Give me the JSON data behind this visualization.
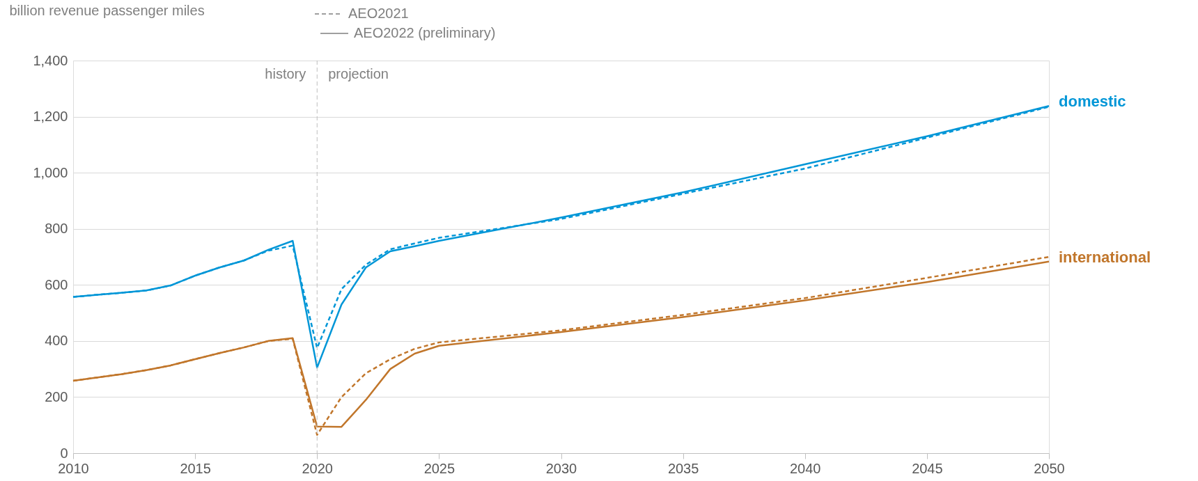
{
  "chart_data": {
    "type": "line",
    "ylabel": "billion revenue passenger miles",
    "x": [
      2010,
      2011,
      2012,
      2013,
      2014,
      2015,
      2016,
      2017,
      2018,
      2019,
      2020,
      2021,
      2022,
      2023,
      2024,
      2025,
      2030,
      2035,
      2040,
      2045,
      2050
    ],
    "series": [
      {
        "color": "#0096d7",
        "line_style": "dashed",
        "values": [
          557,
          565,
          572,
          580,
          598,
          633,
          662,
          687,
          722,
          740,
          375,
          585,
          672,
          727,
          748,
          768,
          835,
          925,
          1015,
          1125,
          1235
        ]
      },
      {
        "name": "domestic",
        "color": "#0096d7",
        "line_style": "solid",
        "values": [
          557,
          565,
          572,
          580,
          598,
          633,
          662,
          687,
          725,
          757,
          305,
          530,
          662,
          720,
          738,
          757,
          840,
          930,
          1030,
          1130,
          1238
        ]
      },
      {
        "color": "#c1762b",
        "line_style": "dashed",
        "values": [
          258,
          270,
          282,
          296,
          313,
          335,
          357,
          377,
          400,
          408,
          65,
          200,
          285,
          335,
          372,
          395,
          438,
          493,
          553,
          625,
          700
        ]
      },
      {
        "name": "international",
        "color": "#c1762b",
        "line_style": "solid",
        "values": [
          258,
          270,
          282,
          296,
          313,
          335,
          357,
          377,
          400,
          410,
          95,
          94,
          190,
          300,
          355,
          383,
          432,
          485,
          545,
          610,
          683
        ]
      }
    ],
    "xlim": [
      2010,
      2050
    ],
    "xticks": [
      2010,
      2015,
      2020,
      2025,
      2030,
      2035,
      2040,
      2045,
      2050
    ],
    "ylim": [
      0,
      1400
    ],
    "yticks": [
      0,
      200,
      400,
      600,
      800,
      {
        "value": 1000,
        "label": "1,000"
      },
      {
        "value": 1200,
        "label": "1,200"
      },
      {
        "value": 1400,
        "label": "1,400"
      }
    ],
    "grid": "y",
    "legend": "top",
    "ref_lines": [
      {
        "axis": "x",
        "value": 2020,
        "color": "#bfbfbf",
        "line_style": "dashed"
      }
    ],
    "annotations": [
      "AEO2021",
      "AEO2022 (preliminary)",
      "history",
      "projection"
    ]
  }
}
